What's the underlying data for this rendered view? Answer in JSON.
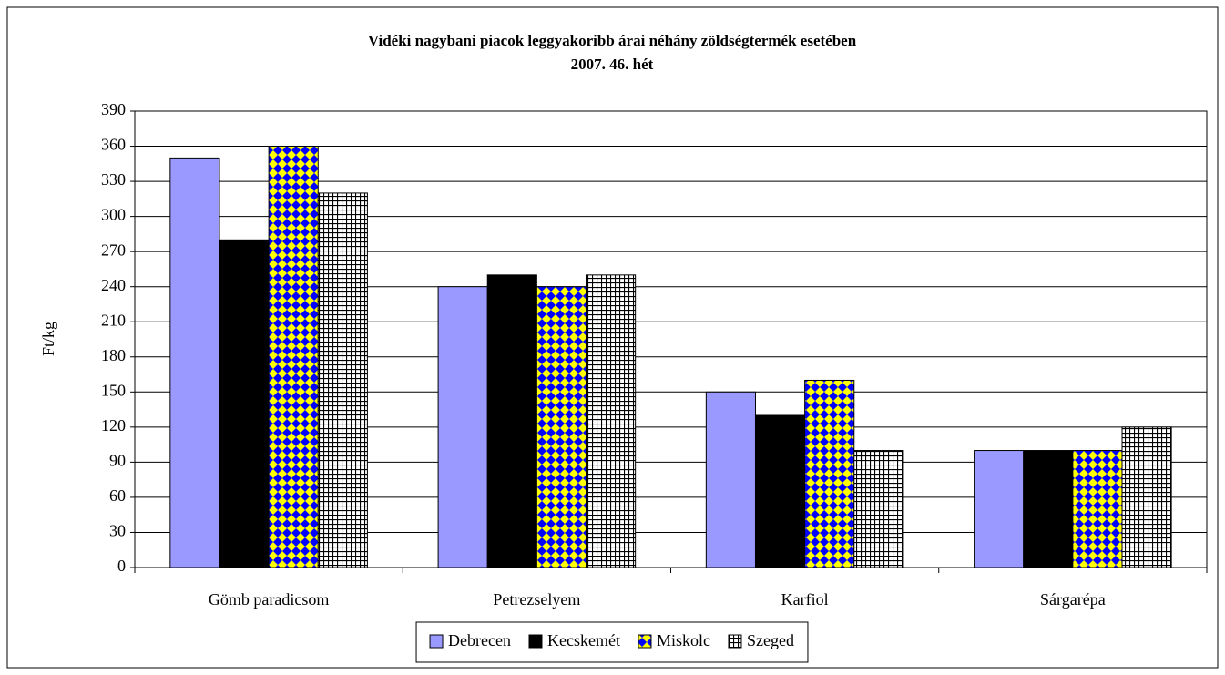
{
  "chart_data": {
    "type": "bar",
    "title": "Vidéki nagybani piacok leggyakoribb árai néhány zöldségtermék esetében",
    "subtitle": "2007. 46. hét",
    "y_label": "Ft/kg",
    "categories": [
      "Gömb paradicsom",
      "Petrezselyem",
      "Karfiol",
      "Sárgarépa"
    ],
    "series": [
      {
        "name": "Debrecen",
        "color": "#9999ff",
        "values": [
          350,
          240,
          150,
          100
        ]
      },
      {
        "name": "Kecskemét",
        "color": "#000000",
        "values": [
          280,
          250,
          130,
          100
        ]
      },
      {
        "name": "Miskolc",
        "color": "#ffff00",
        "pattern": "diamond",
        "pattern_color": "#0000ff",
        "values": [
          360,
          240,
          160,
          100
        ]
      },
      {
        "name": "Szeged",
        "color": "#ffffff",
        "pattern": "grid",
        "pattern_color": "#000000",
        "values": [
          320,
          250,
          100,
          120
        ]
      }
    ],
    "ylim": [
      0,
      390
    ],
    "yticks": [
      0,
      30,
      60,
      90,
      120,
      150,
      180,
      210,
      240,
      270,
      300,
      330,
      360,
      390
    ],
    "grid": true,
    "legend": "bottom"
  }
}
